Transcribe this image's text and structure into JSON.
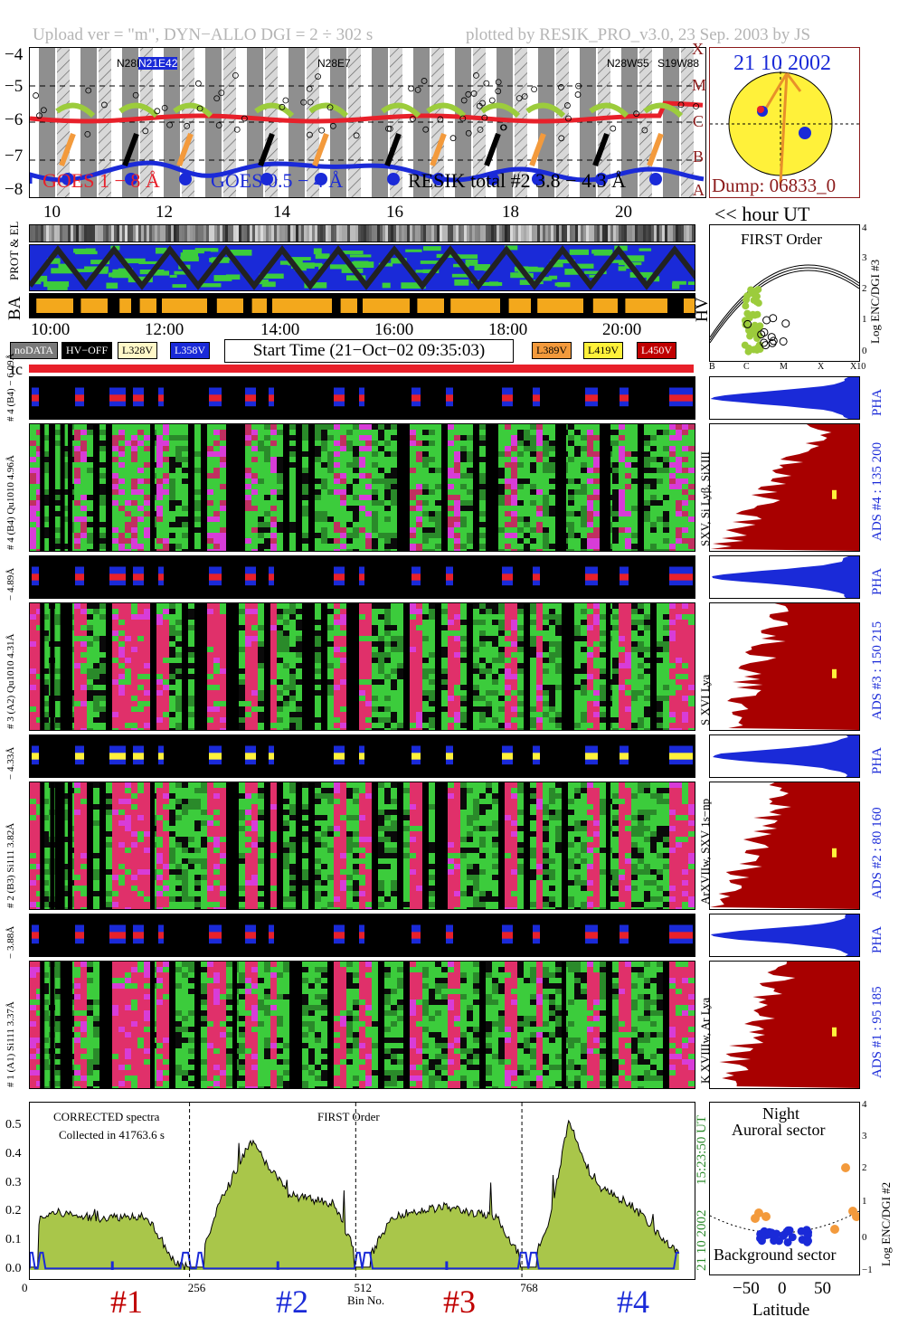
{
  "header": {
    "left": "Upload ver = \"m\", DYN−ALLO DGI =   2 ÷ 302 s",
    "right": "plotted by RESIK_PRO_v3.0, 23 Sep. 2003 by JS"
  },
  "goes": {
    "y_ticks": [
      "−4",
      "−5",
      "−6",
      "−7",
      "−8"
    ],
    "class_labels": [
      "X",
      "M",
      "C",
      "B",
      "A"
    ],
    "legend_goes_long": "GOES 1 − 8 Å",
    "legend_goes_short": "GOES 0.5 − 4 Å",
    "legend_resik": "RESIK total #2  3.8 − 4.3 Å",
    "regions": [
      "N28E42",
      "N21E42",
      "N28E7",
      "N28W55",
      "S19W88"
    ],
    "hour_ticks": [
      "10",
      "12",
      "14",
      "16",
      "18",
      "20"
    ],
    "hour_unit": "<< hour UT",
    "colors": {
      "long": "#e8202a",
      "short": "#1a2ad8",
      "resik": "#000000",
      "points": "#9ccc3c",
      "orange": "#f39a3c"
    }
  },
  "sun": {
    "date": "21 10 2002",
    "dump": "Dump: 06833_0"
  },
  "status": {
    "lab_prot": "PROT & EL",
    "lab_ba": "BA",
    "lab_hv": "HV",
    "time_ticks": [
      "10:00",
      "12:00",
      "14:00",
      "16:00",
      "18:00",
      "20:00"
    ]
  },
  "first_order": {
    "title": "FIRST Order",
    "ylabel": "Log ENC/DGI #3",
    "y_ticks": [
      "4",
      "3",
      "2",
      "1",
      "0"
    ],
    "x_ticks": [
      "B",
      "C",
      "M",
      "X",
      "X10"
    ]
  },
  "legend": {
    "nodata": "noDATA",
    "hvoff": "HV−OFF",
    "l328": "L328V",
    "l358": "L358V",
    "start": "Start Time (21−Oct−02 09:35:03)",
    "l389": "L389V",
    "l419": "L419V",
    "l450": "L450V"
  },
  "tc_label": "tc",
  "channels": [
    {
      "pha_label": "# 4 (B4) − 6.09Å",
      "spec_label": "# 4 (B4) Qu1010 4.96Å",
      "ions": "SXV, Si Lyβ, SiXIII",
      "ads": "ADS #4 :   135 200",
      "pha": "PHA"
    },
    {
      "pha_label": "− 4.89Å",
      "spec_label": "# 3 (A2) Qu1010 4.31Å",
      "ions": "S XVI Lya",
      "ads": "ADS #3 :   150 215",
      "pha": "PHA"
    },
    {
      "pha_label": "− 4.33Å",
      "spec_label": "# 2 (B3) Si111 3.82Å",
      "ions": "ArXVIIw, SXV 1s−np",
      "ads": "ADS #2 :   80 160",
      "pha": "PHA"
    },
    {
      "pha_label": "− 3.88Å",
      "spec_label": "# 1 (A1) Si111 3.37Å",
      "ions": "K XVIIIw, Ar Lya",
      "ads": "ADS #1 :   95 185",
      "pha": "PHA"
    }
  ],
  "spectrum": {
    "text1": "CORRECTED spectra",
    "text2": "Collected in 41763.6 s",
    "text3": "FIRST Order",
    "date_label": "21 10 2002",
    "time_label": "15:23:50 UT",
    "xlabel": "Bin No.",
    "x_ticks": [
      "0",
      "256",
      "512",
      "768"
    ],
    "y_ticks": [
      "0.5",
      "0.4",
      "0.3",
      "0.2",
      "0.1",
      "0.0"
    ],
    "channel_names": [
      "#1",
      "#2",
      "#3",
      "#4"
    ]
  },
  "latitude": {
    "line1": "Night",
    "line2": "Auroral sector",
    "line3": "Background sector",
    "xlabel": "Latitude",
    "ylabel": "Log ENC/DGI #2",
    "x_ticks": [
      "−50",
      "0",
      "50"
    ],
    "y_ticks": [
      "4",
      "3",
      "2",
      "1",
      "0",
      "−1"
    ]
  },
  "chart_data": {
    "type": "line",
    "title": "",
    "xlabel": "Bin No.",
    "ylabel": "",
    "xlim": [
      0,
      1024
    ],
    "ylim": [
      0,
      0.55
    ],
    "x": [
      0,
      16,
      40,
      100,
      180,
      225,
      256,
      290,
      340,
      400,
      470,
      512,
      560,
      640,
      720,
      760,
      768,
      800,
      830,
      870,
      930,
      1000
    ],
    "series": [
      {
        "values": [
          0.0,
          0.18,
          0.2,
          0.18,
          0.19,
          0.02,
          0.0,
          0.22,
          0.45,
          0.26,
          0.23,
          0.0,
          0.19,
          0.22,
          0.18,
          0.03,
          0.0,
          0.17,
          0.52,
          0.3,
          0.22,
          0.05
        ]
      }
    ],
    "markers_bins": [
      256,
      512,
      768
    ]
  }
}
